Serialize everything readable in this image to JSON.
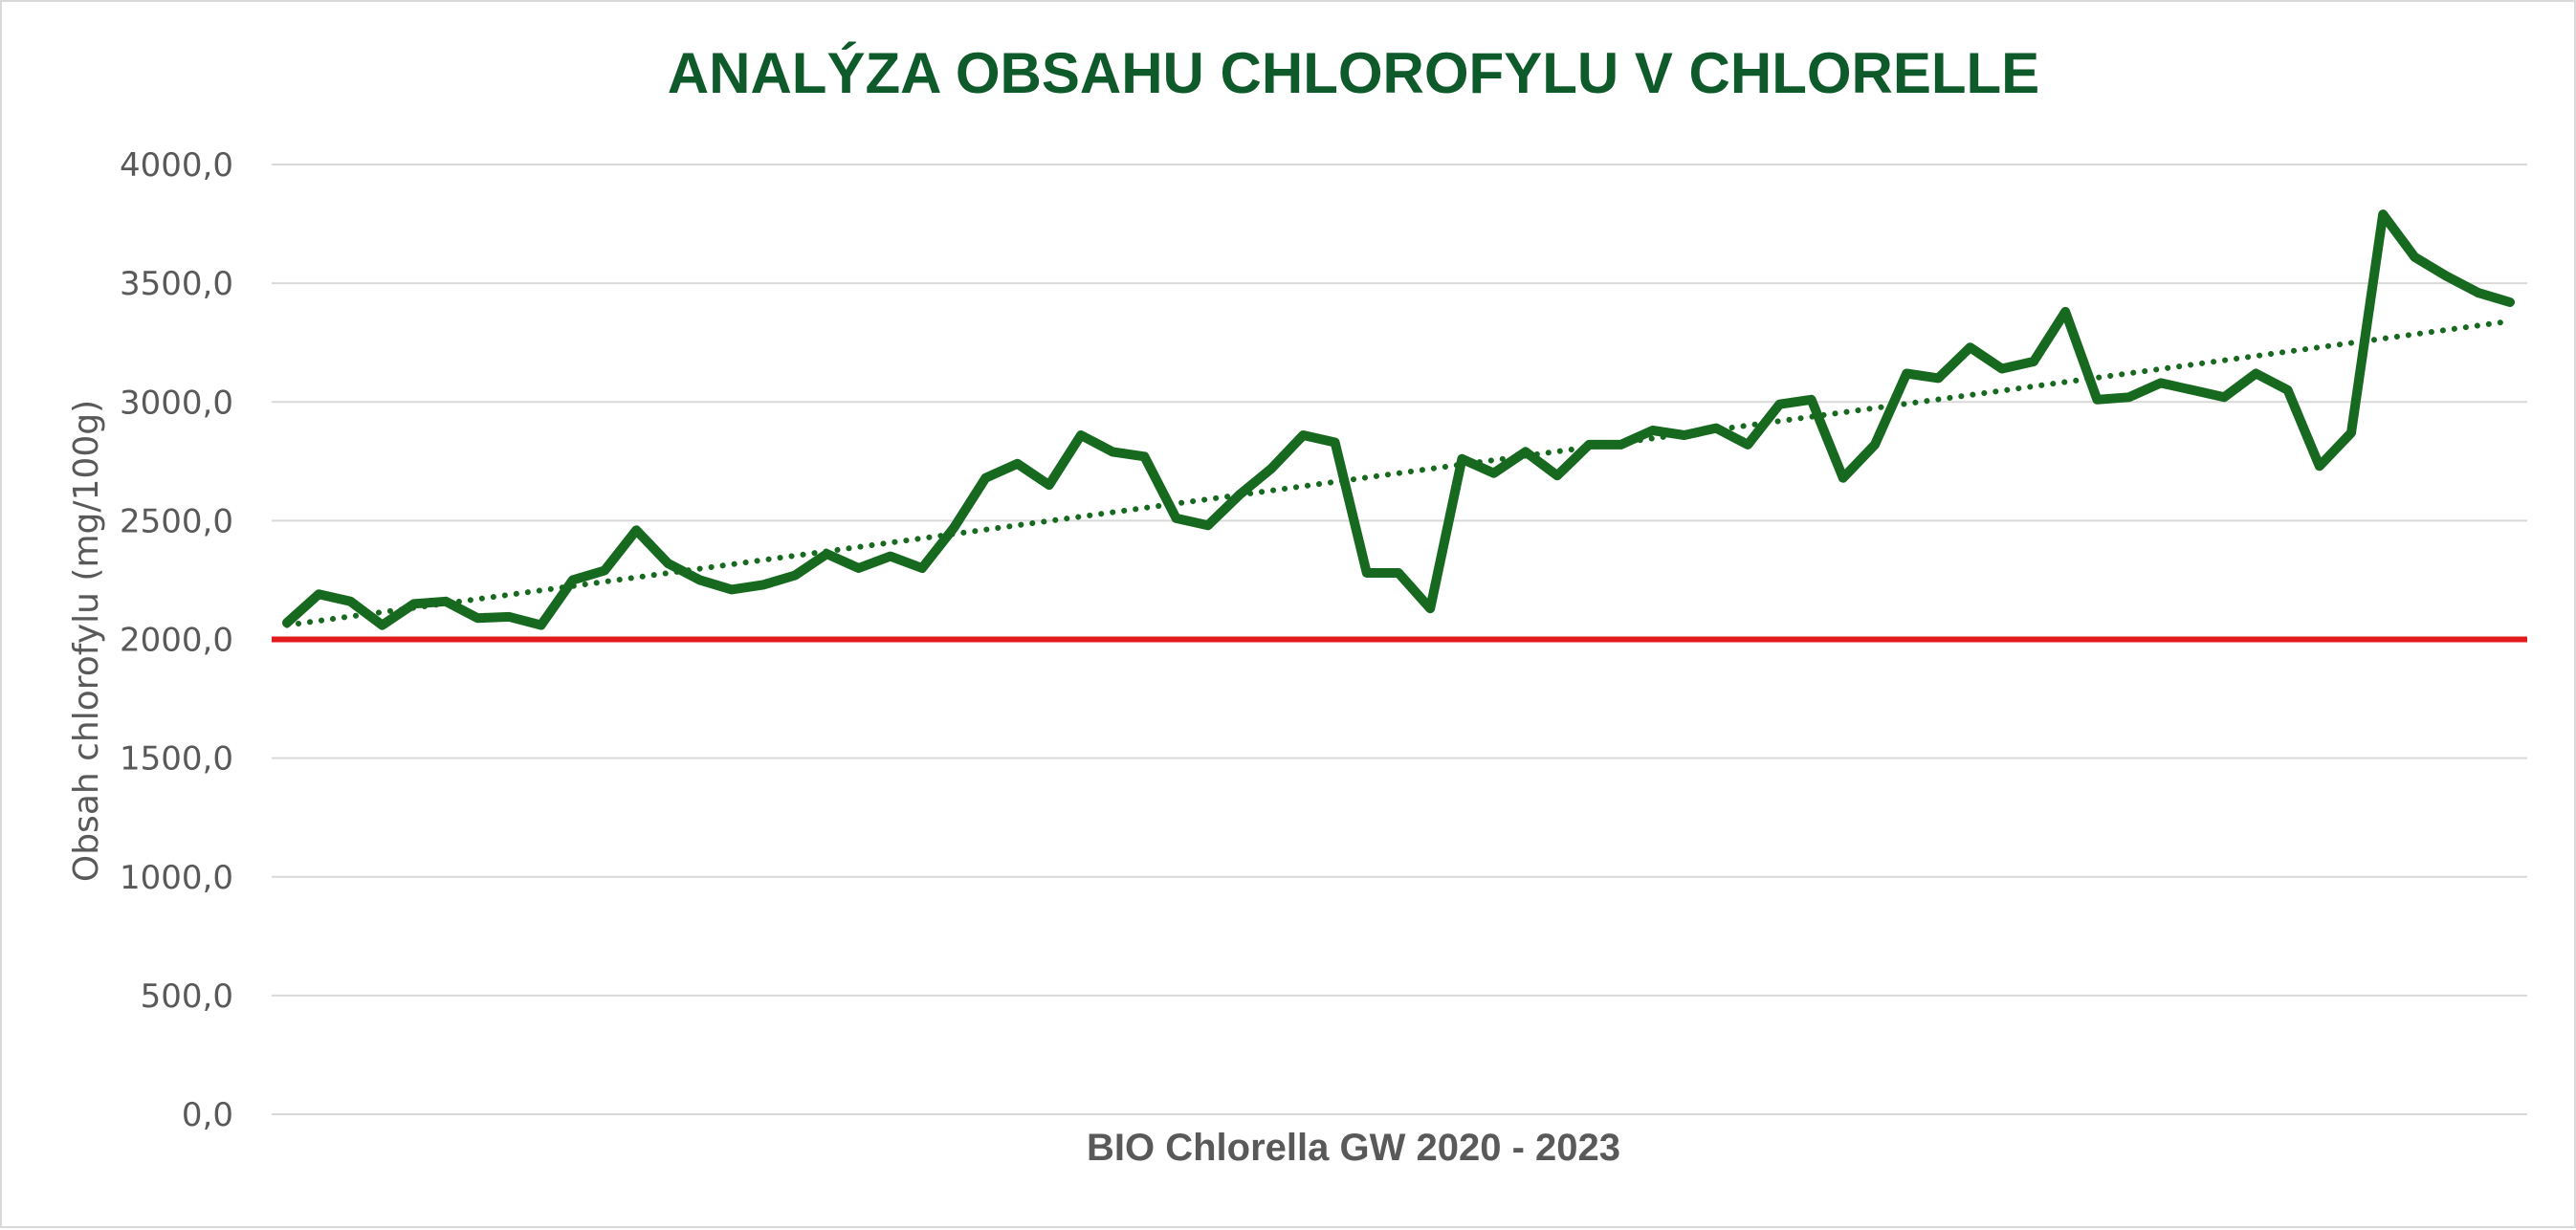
{
  "chart_data": {
    "type": "line",
    "title": "ANALÝZA OBSAHU CHLOROFYLU V CHLORELLE",
    "xlabel": "BIO Chlorella GW 2020 - 2023",
    "ylabel": "Obsah chlorofylu (mg/100g)",
    "ylim": [
      0,
      4000
    ],
    "y_ticks": [
      "0,0",
      "500,0",
      "1000,0",
      "1500,0",
      "2000,0",
      "2500,0",
      "3000,0",
      "3500,0",
      "4000,0"
    ],
    "grid": true,
    "legend": "none",
    "series": [
      {
        "values": [
          2070,
          2190,
          2160,
          2060,
          2150,
          2160,
          2090,
          2095,
          2060,
          2250,
          2290,
          2460,
          2320,
          2250,
          2210,
          2230,
          2270,
          2360,
          2300,
          2350,
          2300,
          2470,
          2680,
          2740,
          2650,
          2860,
          2790,
          2770,
          2510,
          2480,
          2610,
          2720,
          2860,
          2830,
          2280,
          2280,
          2130,
          2760,
          2700,
          2790,
          2690,
          2820,
          2820,
          2880,
          2860,
          2890,
          2820,
          2990,
          3010,
          2680,
          2820,
          3120,
          3100,
          3230,
          3140,
          3170,
          3380,
          3010,
          3020,
          3080,
          3050,
          3020,
          3120,
          3050,
          2730,
          2870,
          3790,
          3610,
          3530,
          3460,
          3420
        ],
        "color": "#17691f"
      }
    ],
    "trendline": {
      "style": "dotted",
      "start": 2060,
      "end": 3340,
      "color": "#17691f"
    },
    "reference_line": {
      "value": 2000,
      "color": "#e31a1c"
    }
  }
}
